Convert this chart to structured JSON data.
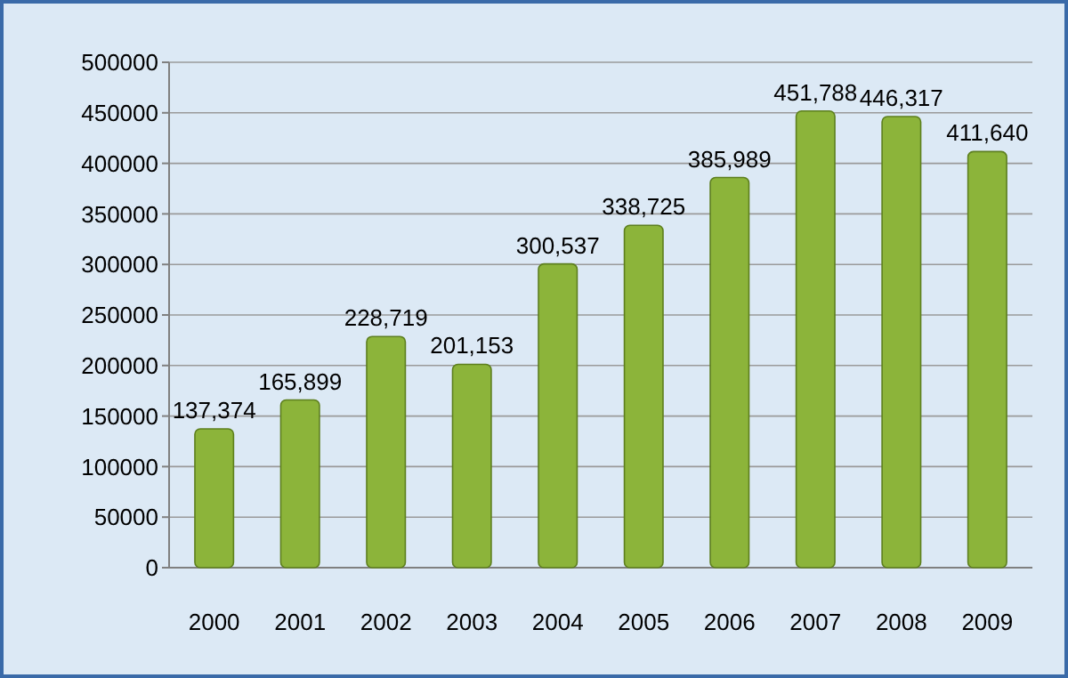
{
  "chart_data": {
    "type": "bar",
    "categories": [
      "2000",
      "2001",
      "2002",
      "2003",
      "2004",
      "2005",
      "2006",
      "2007",
      "2008",
      "2009"
    ],
    "values": [
      137374,
      165899,
      228719,
      201153,
      300537,
      338725,
      385989,
      451788,
      446317,
      411640
    ],
    "value_labels": [
      "137,374",
      "165,899",
      "228,719",
      "201,153",
      "300,537",
      "338,725",
      "385,989",
      "451,788",
      "446,317",
      "411,640"
    ],
    "color": "#8cb43a",
    "ylim": [
      0,
      500000
    ],
    "yticks": [
      0,
      50000,
      100000,
      150000,
      200000,
      250000,
      300000,
      350000,
      400000,
      450000,
      500000
    ],
    "grid": "y"
  }
}
